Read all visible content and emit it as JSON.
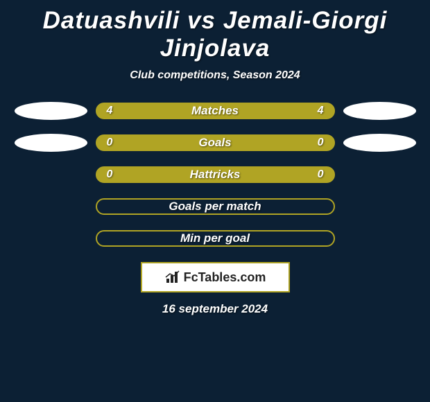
{
  "style": {
    "background_color": "#0c2034",
    "title_color": "#ffffff",
    "subtitle_color": "#ffffff",
    "bar_label_color": "#ffffff",
    "value_color": "#ffffff",
    "bar_fill_color": "#b0a424",
    "bar_border_color": "#b0a424",
    "ellipse_color": "#ffffff",
    "logo_box_bg": "#ffffff",
    "logo_box_border": "#b0a424",
    "logo_text_color": "#222222",
    "date_color": "#ffffff"
  },
  "title": "Datuashvili vs Jemali-Giorgi Jinjolava",
  "subtitle": "Club competitions, Season 2024",
  "rows": [
    {
      "label": "Matches",
      "left": "4",
      "right": "4",
      "filled": true,
      "leftEllipse": true,
      "rightEllipse": true
    },
    {
      "label": "Goals",
      "left": "0",
      "right": "0",
      "filled": true,
      "leftEllipse": true,
      "rightEllipse": true
    },
    {
      "label": "Hattricks",
      "left": "0",
      "right": "0",
      "filled": true,
      "leftEllipse": false,
      "rightEllipse": false
    },
    {
      "label": "Goals per match",
      "left": "",
      "right": "",
      "filled": false,
      "leftEllipse": false,
      "rightEllipse": false
    },
    {
      "label": "Min per goal",
      "left": "",
      "right": "",
      "filled": false,
      "leftEllipse": false,
      "rightEllipse": false
    }
  ],
  "logo_text": "FcTables.com",
  "date": "16 september 2024"
}
